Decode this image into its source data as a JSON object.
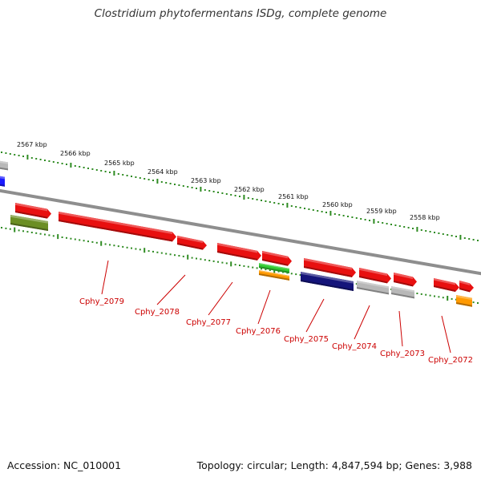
{
  "title": "Clostridium phytofermentans ISDg, complete genome",
  "footer": {
    "accession": "Accession: NC_010001",
    "summary": "Topology: circular; Length: 4,847,594 bp; Genes: 3,988"
  },
  "colors": {
    "backbone": "#8e8e8e",
    "tick": "#2e8b22",
    "gene_label": "#cc0000",
    "forward_gene": "#e81010",
    "grey_feature": "#b8b8b8",
    "navy_feature": "#14147a",
    "olive_feature": "#6b8e23",
    "green_feature": "#33cc33",
    "orange_feature": "#ff9900",
    "blue_feature": "#1a1aff"
  },
  "scale": {
    "unit": "kbp",
    "labels": [
      "2567 kbp",
      "2566 kbp",
      "2565 kbp",
      "2564 kbp",
      "2563 kbp",
      "2562 kbp",
      "2561 kbp",
      "2560 kbp",
      "2559 kbp",
      "2558 kbp"
    ]
  },
  "genes": [
    {
      "label": "Cphy_2079",
      "type": "forward_gene"
    },
    {
      "label": "Cphy_2078",
      "type": "forward_gene"
    },
    {
      "label": "Cphy_2077",
      "type": "forward_gene"
    },
    {
      "label": "Cphy_2076",
      "type": "forward_gene"
    },
    {
      "label": "Cphy_2075",
      "type": "navy_feature"
    },
    {
      "label": "Cphy_2074",
      "type": "grey_feature"
    },
    {
      "label": "Cphy_2073",
      "type": "grey_feature"
    },
    {
      "label": "Cphy_2072",
      "type": "orange_feature"
    }
  ]
}
